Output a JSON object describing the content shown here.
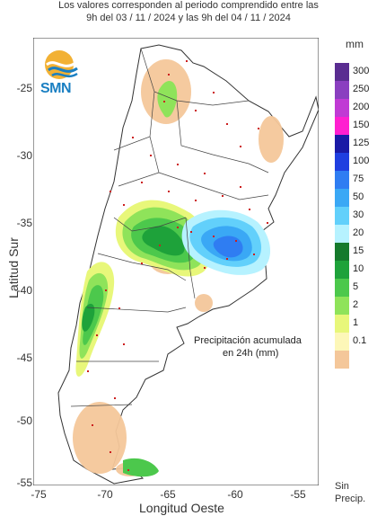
{
  "header": {
    "line1": "Los valores corresponden al periodo comprendido entre las",
    "line2": "9h del 03 / 11 / 2024  y las 9h del 04 / 11 / 2024"
  },
  "logo": {
    "text": "SMN",
    "icon": "smn-logo-icon"
  },
  "axes": {
    "ylabel": "Latitud Sur",
    "xlabel": "Longitud Oeste",
    "yticks": [
      "-25",
      "-30",
      "-35",
      "-40",
      "-45",
      "-50",
      "-55"
    ],
    "xticks": [
      "-75",
      "-70",
      "-65",
      "-60",
      "-55"
    ]
  },
  "legend": {
    "unit": "mm",
    "levels": [
      {
        "label": "300",
        "color": "#5a2d91"
      },
      {
        "label": "250",
        "color": "#8a3fc0"
      },
      {
        "label": "200",
        "color": "#c03ad4"
      },
      {
        "label": "150",
        "color": "#ff1fd0"
      },
      {
        "label": "125",
        "color": "#1a1aa6"
      },
      {
        "label": "100",
        "color": "#1f3fe0"
      },
      {
        "label": "75",
        "color": "#2f7df2"
      },
      {
        "label": "50",
        "color": "#3aa8f5"
      },
      {
        "label": "30",
        "color": "#62d0fb"
      },
      {
        "label": "20",
        "color": "#b6f2ff"
      },
      {
        "label": "15",
        "color": "#157a2c"
      },
      {
        "label": "10",
        "color": "#1ea23a"
      },
      {
        "label": "5",
        "color": "#4cc84c"
      },
      {
        "label": "2",
        "color": "#8fe35a"
      },
      {
        "label": "1",
        "color": "#e8f77a"
      },
      {
        "label": "0.1",
        "color": "#fdf7b8"
      },
      {
        "label": "",
        "color": "#f4c79a"
      }
    ],
    "no_precip_line1": "Sin",
    "no_precip_line2": "Precip."
  },
  "annotation": {
    "line1": "Precipitación acumulada",
    "line2": "en 24h (mm)"
  }
}
